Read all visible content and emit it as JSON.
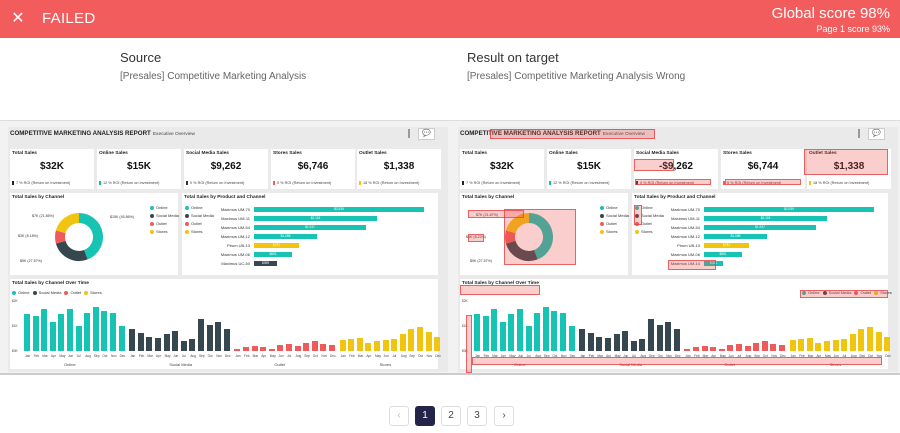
{
  "header": {
    "status": "FAILED",
    "global_score": "Global score 98%",
    "page_score": "Page 1 score 93%",
    "background": "#f25c5c"
  },
  "source": {
    "heading": "Source",
    "subtitle": "[Presales] Competitive Marketing Analysis"
  },
  "target": {
    "heading": "Result on target",
    "subtitle": "[Presales] Competitive Marketing Analysis Wrong"
  },
  "report": {
    "title": "COMPETITIVE MARKETING ANALYSIS REPORT",
    "subtitle": "Executive Overview",
    "comment_icon": "speech-bubble-icon",
    "cards": [
      {
        "label": "Total Sales",
        "value": "$32K",
        "roi": "7 % ROI (Return on Investment)",
        "color": "#222222"
      },
      {
        "label": "Online Sales",
        "value": "$15K",
        "roi": "12 % ROI (Return on Investment)",
        "color": "#1abc9c"
      },
      {
        "label": "Social Media Sales",
        "value": "$9,262",
        "roi": "0 % ROI (Return on Investment)",
        "color": "#333333"
      },
      {
        "label": "Stores Sales",
        "value": "$6,746",
        "roi": "5 % ROI (Return on Investment)",
        "color": "#ec5c5c"
      },
      {
        "label": "Outlet Sales",
        "value": "$1,338",
        "roi": "18 % ROI (Return on Investment)",
        "color": "#f1c40f"
      }
    ],
    "target_card_values": [
      "$32K",
      "$15K",
      "-$9,262",
      "$6,744",
      "$1,338"
    ],
    "channel_panel": {
      "title": "Total Sales by Channel",
      "legend": [
        {
          "label": "Online",
          "color": "#17c3b2"
        },
        {
          "label": "Social Media",
          "color": "#37474f"
        },
        {
          "label": "Outlet",
          "color": "#ef5b5b"
        },
        {
          "label": "Stores",
          "color": "#f1c40f"
        }
      ],
      "labels": [
        "$7K (21.85%)",
        "$15K (45.86%)",
        "$3K (8.18%)",
        "$9K (27.57%)"
      ],
      "target_labels": [
        "$7K (21.87%)",
        "$3K (8.22%)",
        "$9K (27.57%)"
      ]
    },
    "product_panel": {
      "title": "Total Sales by Product and Channel",
      "legend": [
        "Online",
        "Social Media",
        "Outlet",
        "Stores"
      ],
      "rows": [
        {
          "label": "Maximus UM-70",
          "value": "$2,939",
          "amount": 2939,
          "color": "#17c3b2"
        },
        {
          "label": "Maximus UM-11",
          "value": "$2,118",
          "amount": 2118,
          "color": "#17c3b2"
        },
        {
          "label": "Maximus UM-54",
          "value": "$1,937",
          "amount": 1937,
          "color": "#17c3b2"
        },
        {
          "label": "Maximus UM-12",
          "value": "$1,088",
          "amount": 1088,
          "color": "#17c3b2"
        },
        {
          "label": "Pirum UB-13",
          "value": "$781",
          "amount": 781,
          "color": "#f1c40f"
        },
        {
          "label": "Maximus UM-06",
          "value": "$651",
          "amount": 651,
          "color": "#17c3b2"
        },
        {
          "label": "Maximus UC-50",
          "value": "$399",
          "amount": 399,
          "color": "#37474f"
        }
      ],
      "target_last_label": "Maximus UM-14",
      "target_last_value": "$321"
    },
    "time_panel": {
      "title": "Total Sales by Channel Over Time",
      "legend": [
        "Online",
        "Social Media",
        "Outlet",
        "Stores"
      ],
      "y_ticks": [
        "$2K",
        "$1K",
        "$0K"
      ],
      "groups": [
        "Online",
        "Social Media",
        "Outlet",
        "Stores"
      ],
      "months": [
        "Jan",
        "Feb",
        "Mar",
        "Apr",
        "May",
        "Jun",
        "Jul",
        "Aug",
        "Sep",
        "Oct",
        "Nov",
        "Dec"
      ],
      "series": {
        "online": [
          1.55,
          1.45,
          1.75,
          1.2,
          1.55,
          1.75,
          1.05,
          1.6,
          1.85,
          1.65,
          1.6,
          1.05
        ],
        "social": [
          0.9,
          0.75,
          0.6,
          0.55,
          0.7,
          0.85,
          0.4,
          0.5,
          1.35,
          1.1,
          1.2,
          0.9
        ],
        "outlet": [
          0.1,
          0.15,
          0.2,
          0.15,
          0.1,
          0.25,
          0.3,
          0.2,
          0.35,
          0.4,
          0.3,
          0.25
        ],
        "stores": [
          0.45,
          0.5,
          0.55,
          0.35,
          0.4,
          0.45,
          0.5,
          0.7,
          0.9,
          1.0,
          0.8,
          0.6
        ]
      },
      "colors": {
        "online": "#17c3b2",
        "social": "#37474f",
        "outlet": "#ef5b5b",
        "stores": "#f1c40f"
      }
    }
  },
  "pagination": {
    "prev": "‹",
    "next": "›",
    "pages": [
      "1",
      "2",
      "3"
    ],
    "active": "1"
  }
}
